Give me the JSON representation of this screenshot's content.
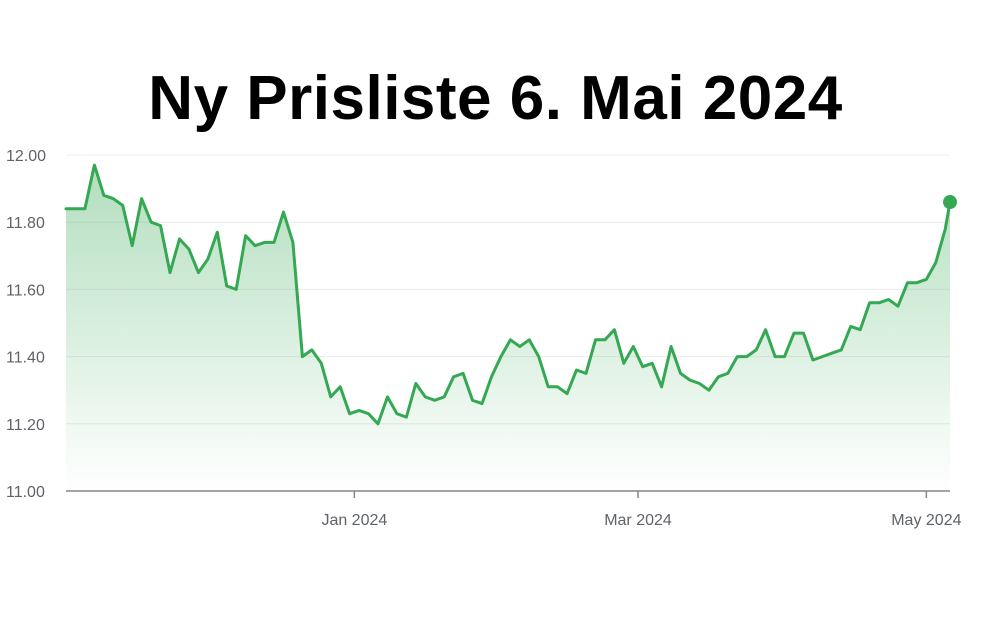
{
  "chart_data": {
    "type": "area",
    "title": "Ny Prisliste 6. Mai 2024",
    "xlabel": "",
    "ylabel": "",
    "ylim": [
      11.0,
      12.0
    ],
    "y_ticks": [
      "11.00",
      "11.20",
      "11.40",
      "11.60",
      "11.80",
      "12.00"
    ],
    "x_ticks": [
      "Jan 2024",
      "Mar 2024",
      "May 2024"
    ],
    "x_range": [
      "2023-11-01",
      "2024-05-06"
    ],
    "x_tick_dates": [
      "2024-01-01",
      "2024-03-01",
      "2024-05-01"
    ],
    "grid": true,
    "legend": "none",
    "line_color": "#34a853",
    "fill_color": "#34a853",
    "x": [
      "2023-11-01",
      "2023-11-03",
      "2023-11-05",
      "2023-11-07",
      "2023-11-09",
      "2023-11-11",
      "2023-11-13",
      "2023-11-15",
      "2023-11-17",
      "2023-11-19",
      "2023-11-21",
      "2023-11-23",
      "2023-11-25",
      "2023-11-27",
      "2023-11-29",
      "2023-12-01",
      "2023-12-03",
      "2023-12-05",
      "2023-12-07",
      "2023-12-09",
      "2023-12-11",
      "2023-12-13",
      "2023-12-15",
      "2023-12-17",
      "2023-12-19",
      "2023-12-21",
      "2023-12-23",
      "2023-12-25",
      "2023-12-27",
      "2023-12-29",
      "2023-12-31",
      "2024-01-02",
      "2024-01-04",
      "2024-01-06",
      "2024-01-08",
      "2024-01-10",
      "2024-01-12",
      "2024-01-14",
      "2024-01-16",
      "2024-01-18",
      "2024-01-20",
      "2024-01-22",
      "2024-01-24",
      "2024-01-26",
      "2024-01-28",
      "2024-01-30",
      "2024-02-01",
      "2024-02-03",
      "2024-02-05",
      "2024-02-07",
      "2024-02-09",
      "2024-02-11",
      "2024-02-13",
      "2024-02-15",
      "2024-02-17",
      "2024-02-19",
      "2024-02-21",
      "2024-02-23",
      "2024-02-25",
      "2024-02-27",
      "2024-02-29",
      "2024-03-02",
      "2024-03-04",
      "2024-03-06",
      "2024-03-08",
      "2024-03-10",
      "2024-03-12",
      "2024-03-14",
      "2024-03-16",
      "2024-03-18",
      "2024-03-20",
      "2024-03-22",
      "2024-03-24",
      "2024-03-26",
      "2024-03-28",
      "2024-03-30",
      "2024-04-01",
      "2024-04-03",
      "2024-04-05",
      "2024-04-07",
      "2024-04-09",
      "2024-04-11",
      "2024-04-13",
      "2024-04-15",
      "2024-04-17",
      "2024-04-19",
      "2024-04-21",
      "2024-04-23",
      "2024-04-25",
      "2024-04-27",
      "2024-04-29",
      "2024-05-01",
      "2024-05-03",
      "2024-05-05",
      "2024-05-06"
    ],
    "values": [
      11.84,
      11.84,
      11.84,
      11.97,
      11.88,
      11.87,
      11.85,
      11.73,
      11.87,
      11.8,
      11.79,
      11.65,
      11.75,
      11.72,
      11.65,
      11.69,
      11.77,
      11.61,
      11.6,
      11.76,
      11.73,
      11.74,
      11.74,
      11.83,
      11.74,
      11.4,
      11.42,
      11.38,
      11.28,
      11.31,
      11.23,
      11.24,
      11.23,
      11.2,
      11.28,
      11.23,
      11.22,
      11.32,
      11.28,
      11.27,
      11.28,
      11.34,
      11.35,
      11.27,
      11.26,
      11.34,
      11.4,
      11.45,
      11.43,
      11.45,
      11.4,
      11.31,
      11.31,
      11.29,
      11.36,
      11.35,
      11.45,
      11.45,
      11.48,
      11.38,
      11.43,
      11.37,
      11.38,
      11.31,
      11.43,
      11.35,
      11.33,
      11.32,
      11.3,
      11.34,
      11.35,
      11.4,
      11.4,
      11.42,
      11.48,
      11.4,
      11.4,
      11.47,
      11.47,
      11.39,
      11.4,
      11.41,
      11.42,
      11.49,
      11.48,
      11.56,
      11.56,
      11.57,
      11.55,
      11.62,
      11.62,
      11.63,
      11.68,
      11.78,
      11.86
    ]
  }
}
